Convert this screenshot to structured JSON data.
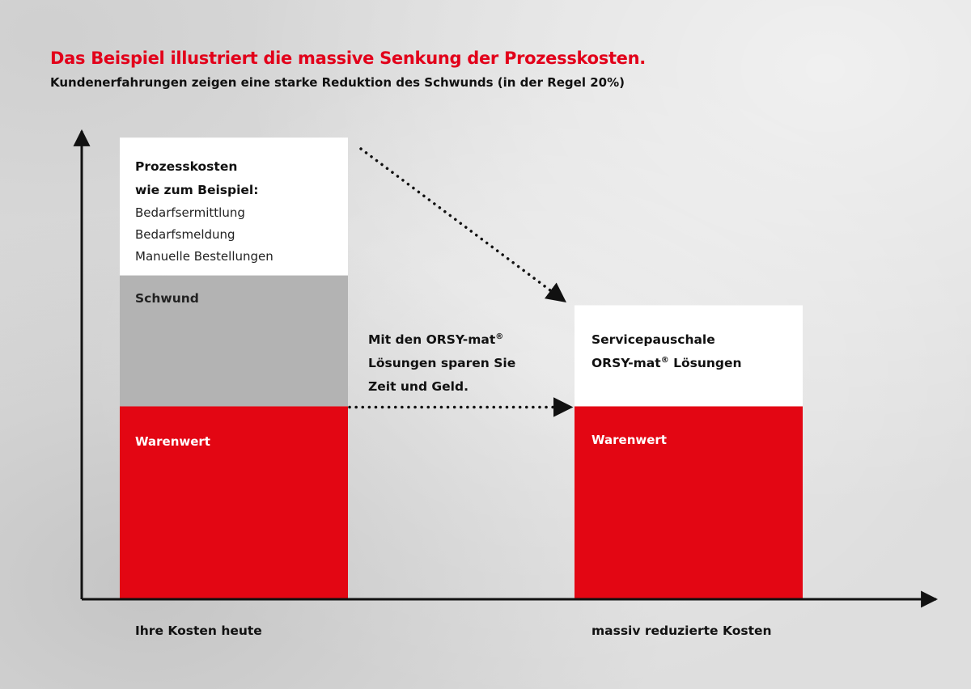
{
  "title": "Das Beispiel illustriert die massive Senkung der Prozesskosten.",
  "subtitle": "Kundenerfahrungen zeigen eine starke Reduktion des Schwunds (in der Regel 20%)",
  "chart_data": {
    "type": "bar",
    "stacked": true,
    "categories": [
      "Ihre Kosten heute",
      "massiv reduzierte Kosten"
    ],
    "ylim": [
      0,
      100
    ],
    "series": [
      {
        "name": "Warenwert",
        "values": [
          42,
          42
        ],
        "color": "#e30613"
      },
      {
        "name": "Schwund",
        "values": [
          28.5,
          0
        ],
        "color": "#b3b3b3"
      },
      {
        "name": "Prozesskosten",
        "values": [
          30,
          0
        ],
        "color": "#ffffff"
      },
      {
        "name": "Servicepauschale ORSY-mat® Lösungen",
        "values": [
          0,
          22
        ],
        "color": "#ffffff"
      }
    ],
    "segment_labels": {
      "bar1_top_heading_line1": "Prozesskosten",
      "bar1_top_heading_line2": "wie zum Beispiel:",
      "bar1_top_items": [
        "Bedarfsermittlung",
        "Bedarfsmeldung",
        "Manuelle Bestellungen"
      ],
      "bar1_middle": "Schwund",
      "bar1_bottom": "Warenwert",
      "bar2_top_line1": "Servicepauschale",
      "bar2_top_line2_main": "ORSY-mat",
      "bar2_top_line2_sup": "®",
      "bar2_top_line2_end": " Lösungen",
      "bar2_bottom": "Warenwert"
    },
    "annotation": {
      "line1_main": "Mit den ORSY-mat",
      "line1_sup": "®",
      "line2": "Lösungen sparen Sie",
      "line3": "Zeit und Geld."
    },
    "grid": false,
    "axis_color": "#111111"
  }
}
